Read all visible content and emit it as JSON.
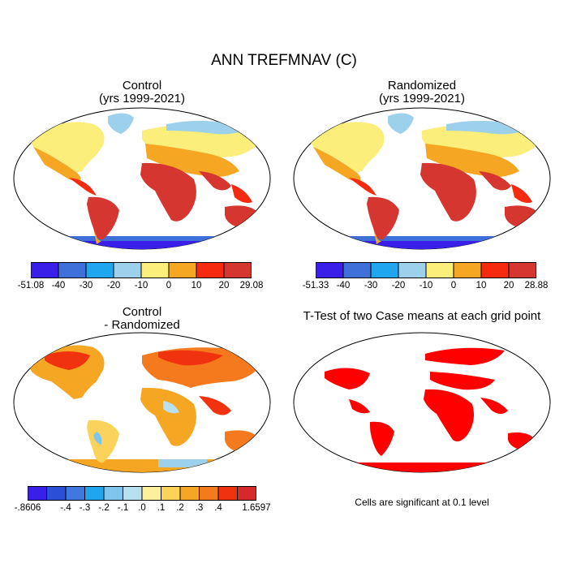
{
  "title": "ANN TREFMNAV (C)",
  "panels": {
    "control": {
      "title": "Control",
      "subtitle": "(yrs 1999-2021)"
    },
    "randomized": {
      "title": "Randomized",
      "subtitle": "(yrs 1999-2021)"
    },
    "diff": {
      "title": "Control",
      "subtitle": "- Randomized"
    },
    "ttest": {
      "title": "T-Test of two Case means at each grid point",
      "footnote": "Cells are significant at 0.1 level"
    }
  },
  "chart_data": [
    {
      "type": "heatmap",
      "title": "Control",
      "subtitle": "(yrs 1999-2021)",
      "colorbar": {
        "labels": [
          "-51.08",
          "-40",
          "-30",
          "-20",
          "-10",
          "0",
          "10",
          "20",
          "29.08"
        ],
        "colors": [
          "#3a1fe8",
          "#3f6fd8",
          "#1fa6ef",
          "#9dd0ea",
          "#fbee7a",
          "#f5a623",
          "#f52a0e",
          "#d63630"
        ]
      }
    },
    {
      "type": "heatmap",
      "title": "Randomized",
      "subtitle": "(yrs 1999-2021)",
      "colorbar": {
        "labels": [
          "-51.33",
          "-40",
          "-30",
          "-20",
          "-10",
          "0",
          "10",
          "20",
          "28.88"
        ],
        "colors": [
          "#3a1fe8",
          "#3f6fd8",
          "#1fa6ef",
          "#9dd0ea",
          "#fbee7a",
          "#f5a623",
          "#f52a0e",
          "#d63630"
        ]
      }
    },
    {
      "type": "heatmap",
      "title": "Control",
      "subtitle": "- Randomized",
      "colorbar": {
        "labels": [
          "-.8606",
          "",
          "-.4",
          "-.3",
          "-.2",
          "-.1",
          ".0",
          ".1",
          ".2",
          ".3",
          ".4",
          "",
          "1.6597"
        ],
        "colors": [
          "#3a1fe8",
          "#2a4fd8",
          "#3f79e0",
          "#1fa6ef",
          "#7ec6ee",
          "#b8e0f0",
          "#fdf09a",
          "#fbd35a",
          "#f5a623",
          "#f57a1e",
          "#f0330e",
          "#d62a2a"
        ]
      }
    },
    {
      "type": "heatmap",
      "title": "T-Test of two Case means at each grid point",
      "significance_color": "#ff0000",
      "footnote": "Cells are significant at 0.1 level"
    }
  ]
}
